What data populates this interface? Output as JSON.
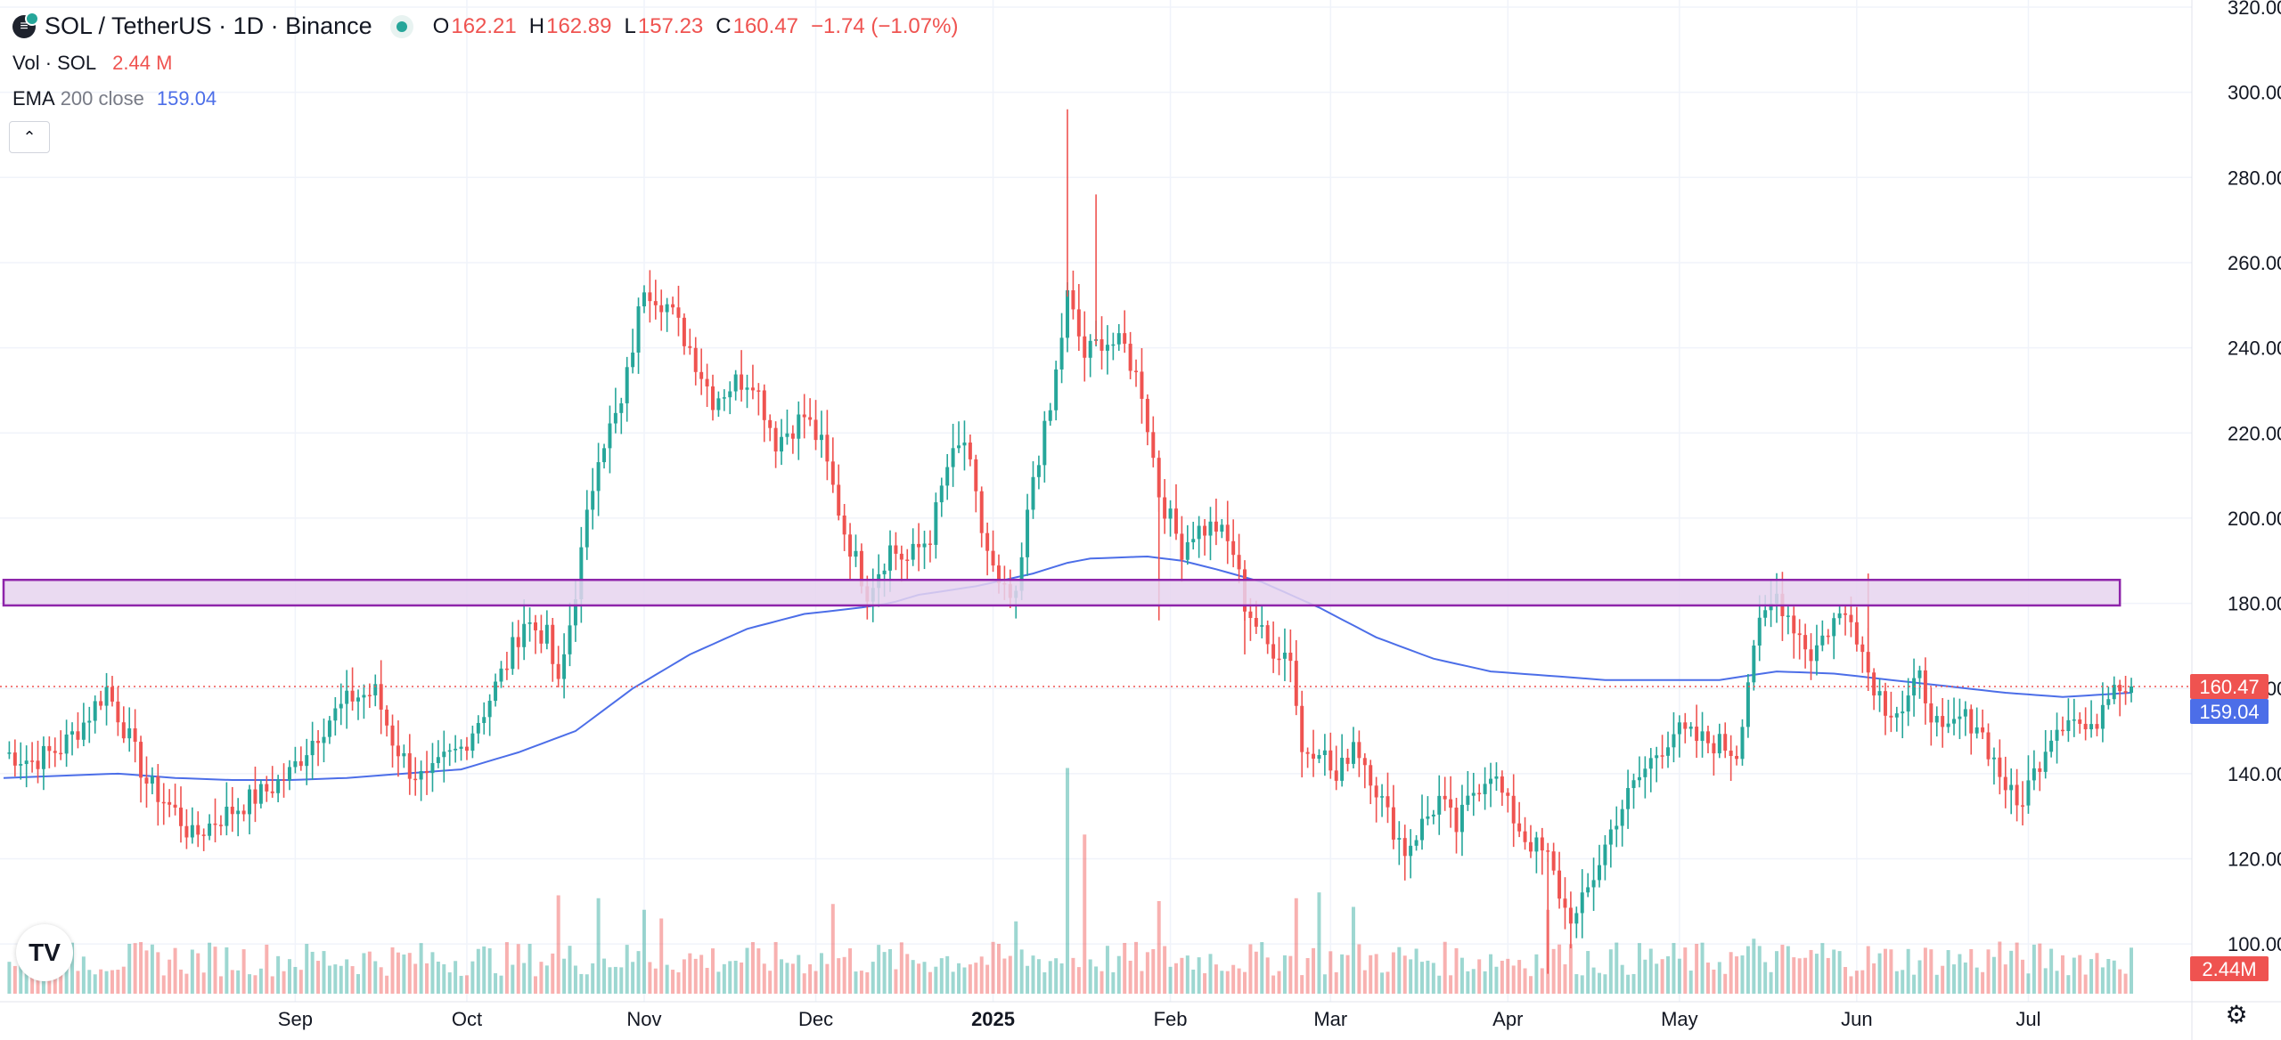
{
  "header": {
    "symbol_title": "SOL / TetherUS · 1D · Binance",
    "o_label": "O",
    "o_value": "162.21",
    "h_label": "H",
    "h_value": "162.89",
    "l_label": "L",
    "l_value": "157.23",
    "c_label": "C",
    "c_value": "160.47",
    "change": "−1.74 (−1.07%)",
    "vol_label": "Vol · SOL",
    "vol_value": "2.44 M",
    "ema_label": "EMA",
    "ema_params": "200 close",
    "ema_value": "159.04",
    "collapse_icon": "chevron-up-icon"
  },
  "colors": {
    "up": "#26a69a",
    "down": "#ef5350",
    "ema": "#4c6ee8",
    "zone_fill": "#e6d4ef",
    "zone_border": "#8e24aa",
    "price_line": "#ef5350"
  },
  "logo_text": "TV",
  "chart_data": {
    "type": "candlestick",
    "symbol": "SOL / TetherUS",
    "interval": "1D",
    "exchange": "Binance",
    "ylim": [
      90,
      320
    ],
    "y_ticks": [
      100,
      120,
      140,
      160,
      180,
      200,
      220,
      240,
      260,
      280,
      300,
      320
    ],
    "x_ticks": [
      "Sep",
      "Oct",
      "Nov",
      "Dec",
      "2025",
      "Feb",
      "Mar",
      "Apr",
      "May",
      "Jun",
      "Jul"
    ],
    "last_price": "160.47",
    "ema_last": "159.04",
    "volume_last": "2.44M",
    "close_path": [
      [
        0,
        145
      ],
      [
        5,
        143
      ],
      [
        10,
        146
      ],
      [
        14,
        152
      ],
      [
        18,
        160
      ],
      [
        22,
        148
      ],
      [
        25,
        138
      ],
      [
        30,
        131
      ],
      [
        33,
        125
      ],
      [
        37,
        129
      ],
      [
        42,
        133
      ],
      [
        46,
        136
      ],
      [
        50,
        140
      ],
      [
        54,
        148
      ],
      [
        57,
        153
      ],
      [
        61,
        158
      ],
      [
        65,
        159
      ],
      [
        68,
        148
      ],
      [
        71,
        141
      ],
      [
        74,
        138
      ],
      [
        77,
        143
      ],
      [
        80,
        146
      ],
      [
        84,
        155
      ],
      [
        88,
        166
      ],
      [
        91,
        176
      ],
      [
        95,
        172
      ],
      [
        97,
        160
      ],
      [
        99,
        175
      ],
      [
        104,
        216
      ],
      [
        108,
        226
      ],
      [
        112,
        255
      ],
      [
        116,
        250
      ],
      [
        120,
        240
      ],
      [
        124,
        228
      ],
      [
        128,
        232
      ],
      [
        131,
        233
      ],
      [
        135,
        218
      ],
      [
        140,
        224
      ],
      [
        143,
        217
      ],
      [
        147,
        197
      ],
      [
        151,
        183
      ],
      [
        155,
        193
      ],
      [
        158,
        190
      ],
      [
        162,
        196
      ],
      [
        165,
        212
      ],
      [
        168,
        218
      ],
      [
        171,
        197
      ],
      [
        174,
        183
      ],
      [
        177,
        180
      ],
      [
        180,
        210
      ],
      [
        183,
        225
      ],
      [
        186,
        252
      ],
      [
        189,
        238
      ],
      [
        192,
        242
      ],
      [
        196,
        240
      ],
      [
        199,
        230
      ],
      [
        202,
        206
      ],
      [
        206,
        193
      ],
      [
        208,
        197
      ],
      [
        212,
        198
      ],
      [
        215,
        192
      ],
      [
        217,
        180
      ],
      [
        221,
        170
      ],
      [
        225,
        168
      ],
      [
        227,
        145
      ],
      [
        230,
        147
      ],
      [
        233,
        138
      ],
      [
        236,
        148
      ],
      [
        239,
        140
      ],
      [
        242,
        130
      ],
      [
        245,
        122
      ],
      [
        248,
        128
      ],
      [
        251,
        134
      ],
      [
        254,
        127
      ],
      [
        257,
        136
      ],
      [
        260,
        141
      ],
      [
        263,
        132
      ],
      [
        266,
        125
      ],
      [
        270,
        120
      ],
      [
        273,
        108
      ],
      [
        275,
        106
      ],
      [
        278,
        116
      ],
      [
        282,
        130
      ],
      [
        285,
        137
      ],
      [
        289,
        145
      ],
      [
        292,
        150
      ],
      [
        296,
        148
      ],
      [
        300,
        147
      ],
      [
        303,
        145
      ],
      [
        306,
        171
      ],
      [
        310,
        182
      ],
      [
        313,
        175
      ],
      [
        316,
        168
      ],
      [
        320,
        176
      ],
      [
        323,
        178
      ],
      [
        326,
        164
      ],
      [
        329,
        156
      ],
      [
        332,
        155
      ],
      [
        335,
        162
      ],
      [
        339,
        148
      ],
      [
        342,
        153
      ],
      [
        345,
        152
      ],
      [
        349,
        140
      ],
      [
        352,
        132
      ],
      [
        355,
        140
      ],
      [
        358,
        150
      ],
      [
        361,
        154
      ],
      [
        365,
        149
      ],
      [
        367,
        157
      ],
      [
        369,
        163
      ],
      [
        371,
        160
      ],
      [
        372,
        159
      ]
    ],
    "ema200_path": [
      [
        0,
        139
      ],
      [
        10,
        139.5
      ],
      [
        20,
        140
      ],
      [
        30,
        139
      ],
      [
        40,
        138.5
      ],
      [
        50,
        138.5
      ],
      [
        60,
        139
      ],
      [
        70,
        140
      ],
      [
        80,
        141
      ],
      [
        90,
        145
      ],
      [
        100,
        150
      ],
      [
        110,
        160
      ],
      [
        120,
        168
      ],
      [
        130,
        174
      ],
      [
        140,
        177.5
      ],
      [
        150,
        179
      ],
      [
        155,
        180
      ],
      [
        160,
        182
      ],
      [
        170,
        184
      ],
      [
        180,
        187
      ],
      [
        186,
        189.5
      ],
      [
        190,
        190.5
      ],
      [
        200,
        191
      ],
      [
        206,
        190
      ],
      [
        212,
        188
      ],
      [
        220,
        185
      ],
      [
        230,
        179
      ],
      [
        240,
        172
      ],
      [
        250,
        167
      ],
      [
        260,
        164
      ],
      [
        270,
        163
      ],
      [
        280,
        162
      ],
      [
        290,
        162
      ],
      [
        300,
        162
      ],
      [
        310,
        164
      ],
      [
        320,
        163.5
      ],
      [
        330,
        162
      ],
      [
        340,
        160.5
      ],
      [
        350,
        159
      ],
      [
        360,
        158
      ],
      [
        372,
        159
      ]
    ],
    "volume_base_m": 2.0,
    "volume_spikes": [
      [
        97,
        6.8
      ],
      [
        104,
        6.6
      ],
      [
        112,
        5.8
      ],
      [
        115,
        5.2
      ],
      [
        145,
        6.2
      ],
      [
        177,
        5.0
      ],
      [
        186,
        15.6
      ],
      [
        189,
        11.0
      ],
      [
        202,
        6.4
      ],
      [
        226,
        6.6
      ],
      [
        230,
        7.0
      ],
      [
        236,
        6.0
      ],
      [
        270,
        5.8
      ],
      [
        272,
        3.4
      ],
      [
        306,
        3.8
      ],
      [
        318,
        3.5
      ],
      [
        349,
        3.6
      ],
      [
        368,
        2.4
      ]
    ],
    "zones": [
      {
        "label": "",
        "y_from": 179.5,
        "y_to": 185.5,
        "x_from": 0,
        "x_to": 370
      }
    ],
    "grid": true
  }
}
